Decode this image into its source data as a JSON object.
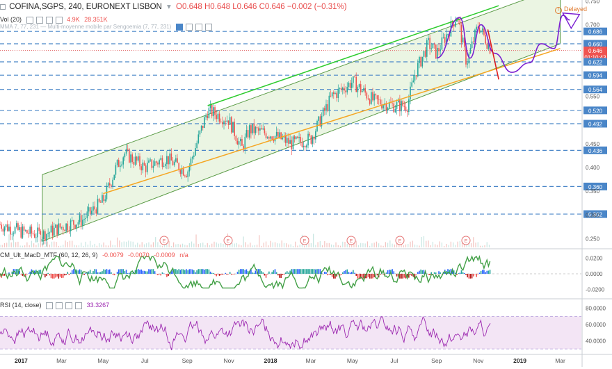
{
  "header": {
    "symbol": "COFINA,SGPS, 240, EURONEXT LISBON",
    "ohlc": "O0.648  H0.648  L0.646  C0.646  −0.002 (−0.31%)",
    "delayed": "Delayed",
    "vol_label": "Vol (20)",
    "vol_value1": "4.9K",
    "vol_value2": "28.351K",
    "ma_label": "MMA 7, 77, 231 — Multi-moyenne mobile par Sengoemia (7, 77, 231)"
  },
  "panes": {
    "macd_label": "CM_Ult_MacD_MTF (60, 12, 26, 9)",
    "macd_values": [
      "-0.0079",
      "-0.0070",
      "-0.0009",
      "n/a"
    ],
    "rsi_label": "RSI (14, close)",
    "rsi_value": "33.3267"
  },
  "colors": {
    "up_candle": "#26a69a",
    "down_candle": "#ef5350",
    "channel_fill": "#e6f2dc",
    "channel_border": "#5a9b46",
    "top_line": "#2ecc2e",
    "support_line": "#f5a623",
    "dashed_levels": "#4a86c8",
    "projection": "#7b1fd1",
    "red_drop": "#e02020",
    "rsi_line": "#9c27b0",
    "rsi_band": "#f3e5f5"
  },
  "chart_data": [
    {
      "type": "candlestick",
      "ylim": [
        0.232,
        0.752
      ],
      "yticks": [
        "0.750",
        "0.700",
        "0.686",
        "0.660",
        "0.646",
        "01:10:43",
        "0.622",
        "0.594",
        "0.564",
        "0.550",
        "0.520",
        "0.492",
        "0.450",
        "0.436",
        "0.400",
        "0.360",
        "0.350",
        "0.302",
        "0.300",
        "0.250"
      ],
      "xlabels": [
        "2017",
        "Mar",
        "May",
        "Jul",
        "Sep",
        "Nov",
        "2018",
        "Mar",
        "May",
        "Jul",
        "Sep",
        "Nov",
        "2019",
        "Mar"
      ],
      "horizontal_levels": [
        0.686,
        0.66,
        0.646,
        0.622,
        0.594,
        0.564,
        0.52,
        0.492,
        0.436,
        0.36,
        0.302
      ],
      "last_price": 0.646,
      "price_path_keypoints": [
        {
          "x": "2016-12",
          "y": 0.28
        },
        {
          "x": "2017-01",
          "y": 0.265
        },
        {
          "x": "2017-02",
          "y": 0.258
        },
        {
          "x": "2017-03",
          "y": 0.275
        },
        {
          "x": "2017-04",
          "y": 0.29
        },
        {
          "x": "2017-05",
          "y": 0.33
        },
        {
          "x": "2017-05-20",
          "y": 0.4
        },
        {
          "x": "2017-06",
          "y": 0.43
        },
        {
          "x": "2017-07",
          "y": 0.4
        },
        {
          "x": "2017-08",
          "y": 0.42
        },
        {
          "x": "2017-09",
          "y": 0.39
        },
        {
          "x": "2017-10",
          "y": 0.52
        },
        {
          "x": "2017-11",
          "y": 0.5
        },
        {
          "x": "2017-11-20",
          "y": 0.44
        },
        {
          "x": "2017-12",
          "y": 0.48
        },
        {
          "x": "2018-01",
          "y": 0.47
        },
        {
          "x": "2018-02",
          "y": 0.45
        },
        {
          "x": "2018-03",
          "y": 0.46
        },
        {
          "x": "2018-04",
          "y": 0.55
        },
        {
          "x": "2018-05",
          "y": 0.58
        },
        {
          "x": "2018-06",
          "y": 0.54
        },
        {
          "x": "2018-07",
          "y": 0.53
        },
        {
          "x": "2018-07-20",
          "y": 0.53
        },
        {
          "x": "2018-08",
          "y": 0.6
        },
        {
          "x": "2018-08-20",
          "y": 0.66
        },
        {
          "x": "2018-09",
          "y": 0.64
        },
        {
          "x": "2018-10",
          "y": 0.72
        },
        {
          "x": "2018-10-15",
          "y": 0.62
        },
        {
          "x": "2018-11",
          "y": 0.7
        },
        {
          "x": "2018-11-20",
          "y": 0.646
        }
      ],
      "channel": {
        "lower_start": [
          "2017-02",
          0.245
        ],
        "lower_end": [
          "2019-03",
          0.66
        ],
        "upper_start": [
          "2017-02",
          0.385
        ],
        "upper_end": [
          "2019-03",
          0.78
        ]
      },
      "trend_top": {
        "from": [
          "2017-10",
          0.53
        ],
        "to": [
          "2018-12",
          0.74
        ]
      },
      "trend_support": {
        "from": [
          "2017-05",
          0.345
        ],
        "to": [
          "2019-03",
          0.65
        ]
      },
      "projection_path": [
        [
          "2018-09",
          0.63
        ],
        [
          "2018-10-05",
          0.715
        ],
        [
          "2018-10-20",
          0.63
        ],
        [
          "2018-11-05",
          0.7
        ],
        [
          "2018-11-25",
          0.64
        ],
        [
          "2018-12-20",
          0.6
        ],
        [
          "2019-01-15",
          0.62
        ],
        [
          "2019-02",
          0.66
        ],
        [
          "2019-02-20",
          0.65
        ],
        [
          "2019-03-05",
          0.72
        ],
        [
          "2019-03-15",
          0.71
        ]
      ],
      "red_drop": [
        [
          "2018-11-15",
          0.69
        ],
        [
          "2018-12-01",
          0.585
        ]
      ],
      "event_markers": [
        "E",
        "E",
        "E",
        "E",
        "E",
        "E"
      ]
    },
    {
      "type": "histogram",
      "name": "CM_Ult_MacD_MTF (60, 12, 26, 9)",
      "ylim": [
        -0.03,
        0.03
      ],
      "yticks": [
        "0.0200",
        "0.0000",
        "-0.0200"
      ]
    },
    {
      "type": "line",
      "name": "RSI (14, close)",
      "ylim": [
        25,
        90
      ],
      "yticks": [
        "80.0000",
        "60.0000",
        "40.0000"
      ],
      "bands": [
        30,
        70
      ]
    }
  ]
}
